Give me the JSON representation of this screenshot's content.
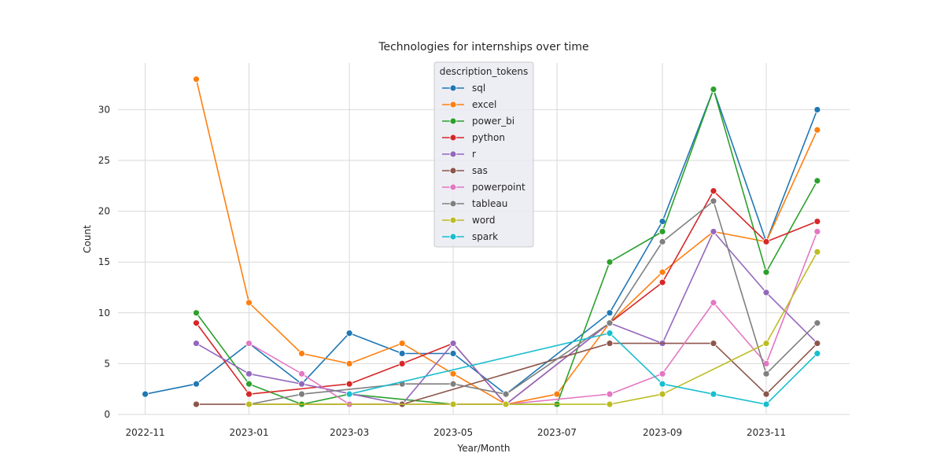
{
  "chart_data": {
    "type": "line",
    "title": "Technologies for internships over time",
    "xlabel": "Year/Month",
    "ylabel": "Count",
    "x_axis_type": "date",
    "xlim": [
      "2022-10-16",
      "2023-12-20"
    ],
    "ylim": [
      0,
      34.6
    ],
    "x_ticks": [
      "2022-11",
      "2023-01",
      "2023-03",
      "2023-05",
      "2023-07",
      "2023-09",
      "2023-11"
    ],
    "y_ticks": [
      0,
      5,
      10,
      15,
      20,
      25,
      30
    ],
    "grid": true,
    "marker": "circle",
    "legend": {
      "title": "description_tokens",
      "placement": "top-center"
    },
    "series": [
      {
        "name": "sql",
        "color": "#1f77b4",
        "points": [
          {
            "x": "2022-11-01",
            "y": 2
          },
          {
            "x": "2022-12-01",
            "y": 3
          },
          {
            "x": "2023-01-01",
            "y": 7
          },
          {
            "x": "2023-02-01",
            "y": 3
          },
          {
            "x": "2023-03-01",
            "y": 8
          },
          {
            "x": "2023-04-01",
            "y": 6
          },
          {
            "x": "2023-05-01",
            "y": 6
          },
          {
            "x": "2023-06-01",
            "y": 2
          },
          {
            "x": "2023-08-01",
            "y": 10
          },
          {
            "x": "2023-09-01",
            "y": 19
          },
          {
            "x": "2023-10-01",
            "y": 32
          },
          {
            "x": "2023-11-01",
            "y": 17
          },
          {
            "x": "2023-12-01",
            "y": 30
          }
        ]
      },
      {
        "name": "excel",
        "color": "#ff7f0e",
        "points": [
          {
            "x": "2022-12-01",
            "y": 33
          },
          {
            "x": "2023-01-01",
            "y": 11
          },
          {
            "x": "2023-02-01",
            "y": 6
          },
          {
            "x": "2023-03-01",
            "y": 5
          },
          {
            "x": "2023-04-01",
            "y": 7
          },
          {
            "x": "2023-05-01",
            "y": 4
          },
          {
            "x": "2023-06-01",
            "y": 1
          },
          {
            "x": "2023-07-01",
            "y": 2
          },
          {
            "x": "2023-08-01",
            "y": 9
          },
          {
            "x": "2023-09-01",
            "y": 14
          },
          {
            "x": "2023-10-01",
            "y": 18
          },
          {
            "x": "2023-11-01",
            "y": 17
          },
          {
            "x": "2023-12-01",
            "y": 28
          }
        ]
      },
      {
        "name": "power_bi",
        "color": "#2ca02c",
        "points": [
          {
            "x": "2022-12-01",
            "y": 10
          },
          {
            "x": "2023-01-01",
            "y": 3
          },
          {
            "x": "2023-02-01",
            "y": 1
          },
          {
            "x": "2023-03-01",
            "y": 2
          },
          {
            "x": "2023-05-01",
            "y": 1
          },
          {
            "x": "2023-06-01",
            "y": 1
          },
          {
            "x": "2023-07-01",
            "y": 1
          },
          {
            "x": "2023-08-01",
            "y": 15
          },
          {
            "x": "2023-09-01",
            "y": 18
          },
          {
            "x": "2023-10-01",
            "y": 32
          },
          {
            "x": "2023-11-01",
            "y": 14
          },
          {
            "x": "2023-12-01",
            "y": 23
          }
        ]
      },
      {
        "name": "python",
        "color": "#d62728",
        "points": [
          {
            "x": "2022-12-01",
            "y": 9
          },
          {
            "x": "2023-01-01",
            "y": 2
          },
          {
            "x": "2023-03-01",
            "y": 3
          },
          {
            "x": "2023-04-01",
            "y": 5
          },
          {
            "x": "2023-05-01",
            "y": 7
          },
          {
            "x": "2023-06-01",
            "y": 1
          },
          {
            "x": "2023-08-01",
            "y": 9
          },
          {
            "x": "2023-09-01",
            "y": 13
          },
          {
            "x": "2023-10-01",
            "y": 22
          },
          {
            "x": "2023-11-01",
            "y": 17
          },
          {
            "x": "2023-12-01",
            "y": 19
          }
        ]
      },
      {
        "name": "r",
        "color": "#9467bd",
        "points": [
          {
            "x": "2022-12-01",
            "y": 7
          },
          {
            "x": "2023-01-01",
            "y": 4
          },
          {
            "x": "2023-02-01",
            "y": 3
          },
          {
            "x": "2023-04-01",
            "y": 1
          },
          {
            "x": "2023-05-01",
            "y": 7
          },
          {
            "x": "2023-06-01",
            "y": 1
          },
          {
            "x": "2023-08-01",
            "y": 9
          },
          {
            "x": "2023-09-01",
            "y": 7
          },
          {
            "x": "2023-10-01",
            "y": 18
          },
          {
            "x": "2023-11-01",
            "y": 12
          },
          {
            "x": "2023-12-01",
            "y": 7
          }
        ]
      },
      {
        "name": "sas",
        "color": "#8c564b",
        "points": [
          {
            "x": "2022-12-01",
            "y": 1
          },
          {
            "x": "2023-01-01",
            "y": 1
          },
          {
            "x": "2023-04-01",
            "y": 1
          },
          {
            "x": "2023-08-01",
            "y": 7
          },
          {
            "x": "2023-10-01",
            "y": 7
          },
          {
            "x": "2023-11-01",
            "y": 2
          },
          {
            "x": "2023-12-01",
            "y": 7
          }
        ]
      },
      {
        "name": "powerpoint",
        "color": "#e377c2",
        "points": [
          {
            "x": "2023-01-01",
            "y": 7
          },
          {
            "x": "2023-02-01",
            "y": 4
          },
          {
            "x": "2023-03-01",
            "y": 1
          },
          {
            "x": "2023-06-01",
            "y": 1
          },
          {
            "x": "2023-08-01",
            "y": 2
          },
          {
            "x": "2023-09-01",
            "y": 4
          },
          {
            "x": "2023-10-01",
            "y": 11
          },
          {
            "x": "2023-11-01",
            "y": 5
          },
          {
            "x": "2023-12-01",
            "y": 18
          }
        ]
      },
      {
        "name": "tableau",
        "color": "#7f7f7f",
        "points": [
          {
            "x": "2023-01-01",
            "y": 1
          },
          {
            "x": "2023-02-01",
            "y": 2
          },
          {
            "x": "2023-04-01",
            "y": 3
          },
          {
            "x": "2023-05-01",
            "y": 3
          },
          {
            "x": "2023-06-01",
            "y": 2
          },
          {
            "x": "2023-08-01",
            "y": 9
          },
          {
            "x": "2023-09-01",
            "y": 17
          },
          {
            "x": "2023-10-01",
            "y": 21
          },
          {
            "x": "2023-11-01",
            "y": 4
          },
          {
            "x": "2023-12-01",
            "y": 9
          }
        ]
      },
      {
        "name": "word",
        "color": "#bcbd22",
        "points": [
          {
            "x": "2023-01-01",
            "y": 1
          },
          {
            "x": "2023-05-01",
            "y": 1
          },
          {
            "x": "2023-06-01",
            "y": 1
          },
          {
            "x": "2023-08-01",
            "y": 1
          },
          {
            "x": "2023-09-01",
            "y": 2
          },
          {
            "x": "2023-11-01",
            "y": 7
          },
          {
            "x": "2023-12-01",
            "y": 16
          }
        ]
      },
      {
        "name": "spark",
        "color": "#17becf",
        "points": [
          {
            "x": "2023-03-01",
            "y": 2
          },
          {
            "x": "2023-08-01",
            "y": 8
          },
          {
            "x": "2023-09-01",
            "y": 3
          },
          {
            "x": "2023-10-01",
            "y": 2
          },
          {
            "x": "2023-11-01",
            "y": 1
          },
          {
            "x": "2023-12-01",
            "y": 6
          }
        ]
      }
    ]
  }
}
